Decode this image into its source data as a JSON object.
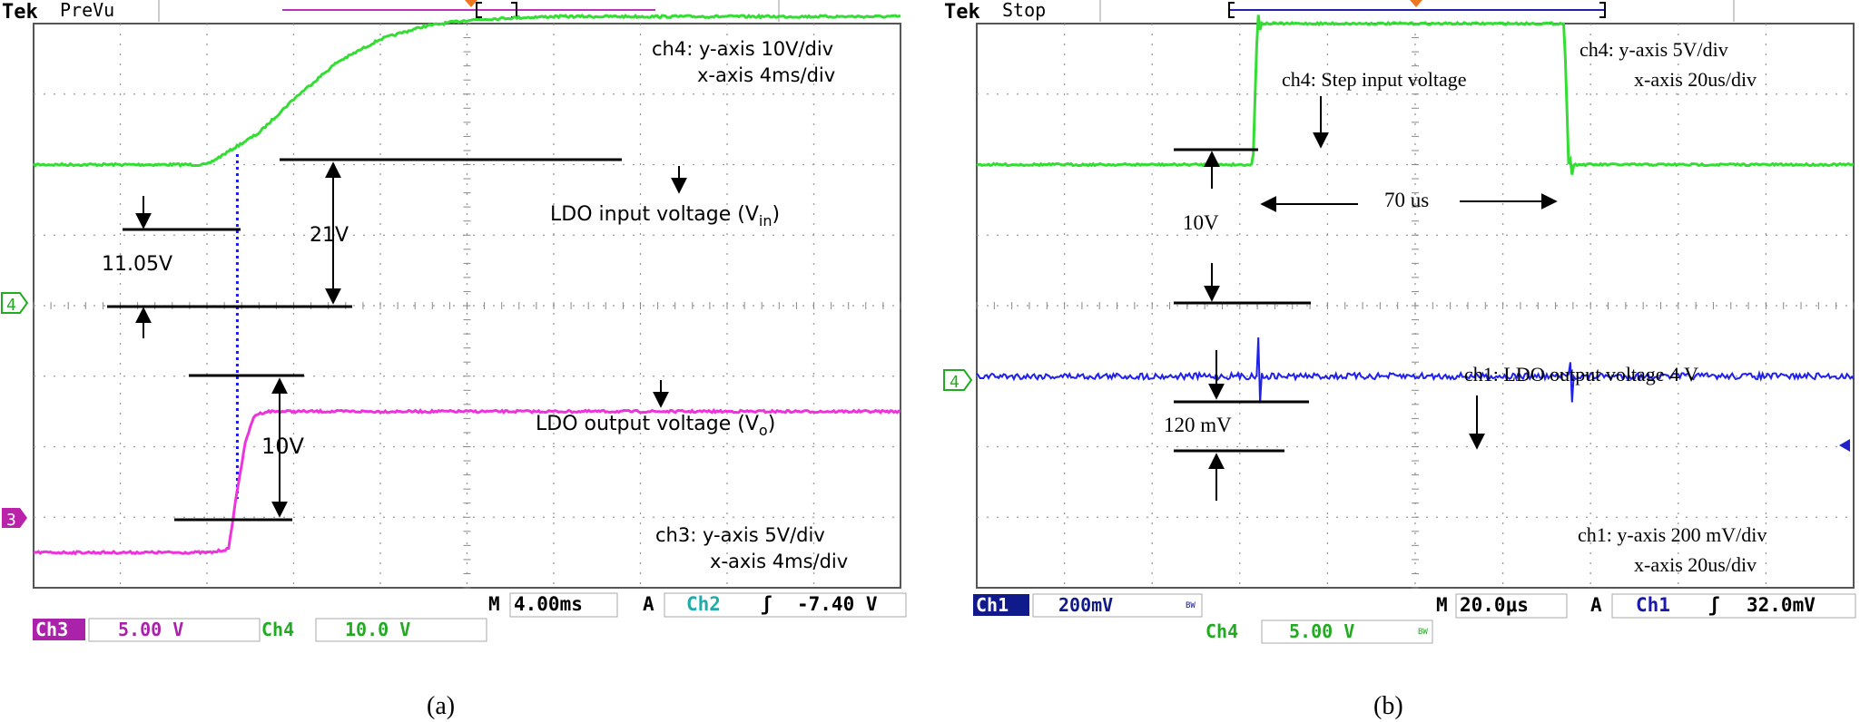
{
  "panels": [
    {
      "caption": "(a)",
      "brand": "Tek",
      "mode": "PreVu",
      "ann_ch4_y": "ch4: y-axis 10V/div",
      "ann_ch4_x": "x-axis 4ms/div",
      "ann_ch3_y": "ch3: y-axis 5V/div",
      "ann_ch3_x": "x-axis 4ms/div",
      "vin_label_main": "LDO input voltage (V",
      "vin_label_sub": "in",
      "vin_label_end": ")",
      "vo_label_main": "LDO output voltage (V",
      "vo_label_sub": "o",
      "vo_label_end": ")",
      "meas_vin": "11.05V",
      "meas_rise": "21V",
      "meas_vo": "10V",
      "marker_ch4": "4",
      "marker_ch3": "3",
      "time_prefix": "M",
      "time_base": "4.00ms",
      "trig_prefix": "A",
      "trig_ch": "Ch2",
      "trig_slope": "ʃ",
      "trig_level": "-7.40 V",
      "ch3_label": "Ch3",
      "ch3_scale": "5.00 V",
      "ch4_label": "Ch4",
      "ch4_scale": "10.0 V"
    },
    {
      "caption": "(b)",
      "brand": "Tek",
      "mode": "Stop",
      "ann_ch4_y": "ch4: y-axis 5V/div",
      "ann_ch4_x": "x-axis 20us/div",
      "ann_step": "ch4: Step input voltage",
      "ann_ch1_out": "ch1: LDO output voltage 4 V",
      "ann_ch1_y": "ch1: y-axis 200 mV/div",
      "ann_ch1_x": "x-axis 20us/div",
      "meas_step": "10V",
      "meas_width": "70 us",
      "meas_ripple": "120 mV",
      "marker_ch4": "4",
      "time_prefix": "M",
      "time_base": "20.0μs",
      "trig_prefix": "A",
      "trig_ch": "Ch1",
      "trig_slope": "ʃ",
      "trig_level": "32.0mV",
      "ch1_label": "Ch1",
      "ch1_scale": "200mV",
      "ch4_label": "Ch4",
      "ch4_scale": "5.00 V",
      "bw": "BW"
    }
  ],
  "chart_data": [
    {
      "type": "line",
      "title": "",
      "x_divisions": 10,
      "y_divisions": 8,
      "series": [
        {
          "name": "LDO input voltage (Vin)",
          "channel": "ch4",
          "color": "#33dd33",
          "x_div": [
            0,
            2.0,
            2.6,
            3.0,
            3.5,
            4.0,
            4.5,
            5.0,
            5.5,
            6.0,
            7.0,
            8.0,
            10.0
          ],
          "y_div": [
            6.0,
            6.0,
            6.45,
            6.93,
            7.45,
            7.78,
            7.96,
            8.05,
            8.08,
            8.1,
            8.1,
            8.1,
            8.1
          ]
        },
        {
          "name": "LDO output voltage (Vo)",
          "channel": "ch3",
          "color": "#ee33dd",
          "x_div": [
            0,
            2.05,
            2.25,
            2.35,
            2.45,
            2.55,
            2.7,
            3.0,
            10.0
          ],
          "y_div": [
            0.5,
            0.5,
            0.55,
            1.4,
            2.1,
            2.45,
            2.5,
            2.5,
            2.5
          ]
        }
      ],
      "guides": {
        "vertical_dotted_x_div": 2.35,
        "color": "#1a1aee"
      }
    },
    {
      "type": "line",
      "title": "",
      "x_divisions": 10,
      "y_divisions": 8,
      "series": [
        {
          "name": "ch4: Step input voltage",
          "channel": "ch4",
          "color": "#33dd33",
          "x_div": [
            0,
            3.15,
            3.2,
            6.7,
            6.75,
            10.0
          ],
          "y_div": [
            6.0,
            6.0,
            8.0,
            8.0,
            6.0,
            6.0
          ]
        },
        {
          "name": "ch1: LDO output voltage 4 V",
          "channel": "ch1",
          "color": "#2020ee",
          "x_div": [
            0,
            10.0
          ],
          "y_div": [
            3.0,
            3.0
          ]
        }
      ]
    }
  ]
}
